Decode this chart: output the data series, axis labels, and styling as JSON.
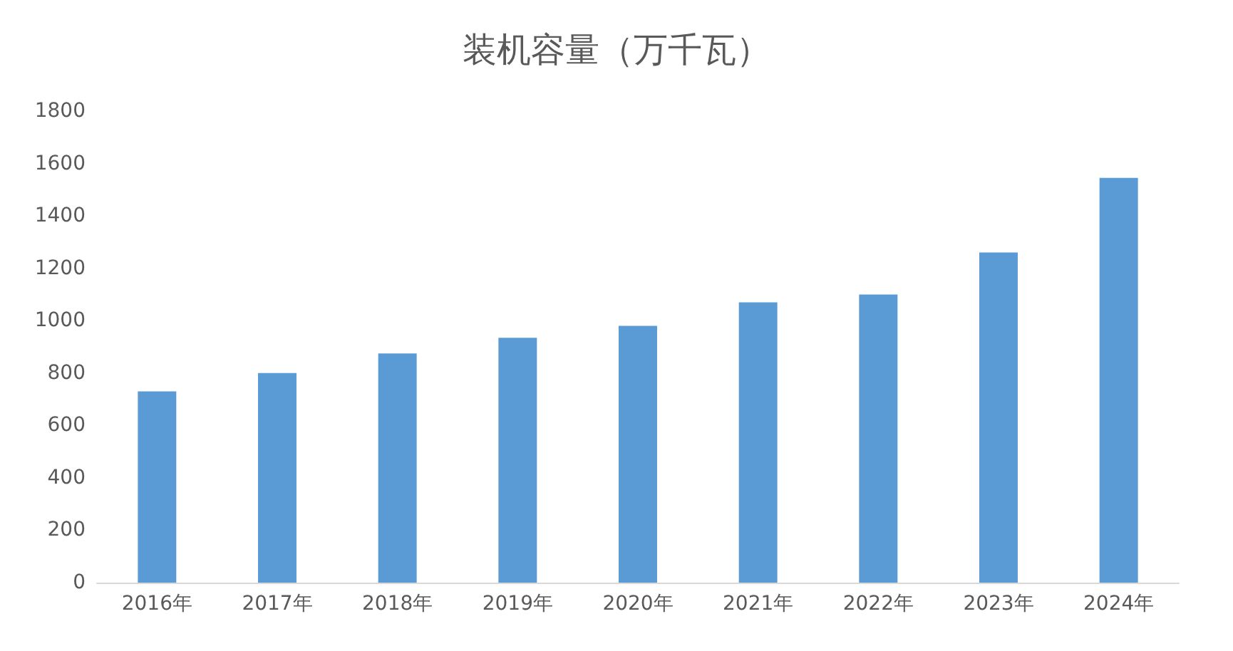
{
  "chart_data": {
    "type": "bar",
    "title": "装机容量（万千瓦）",
    "categories": [
      "2016年",
      "2017年",
      "2018年",
      "2019年",
      "2020年",
      "2021年",
      "2022年",
      "2023年",
      "2024年"
    ],
    "values": [
      730,
      800,
      875,
      935,
      980,
      1070,
      1100,
      1260,
      1545
    ],
    "color": "#5b9bd5",
    "ylim": [
      0,
      1800
    ],
    "yticks": [
      0,
      200,
      400,
      600,
      800,
      1000,
      1200,
      1400,
      1600,
      1800
    ]
  }
}
